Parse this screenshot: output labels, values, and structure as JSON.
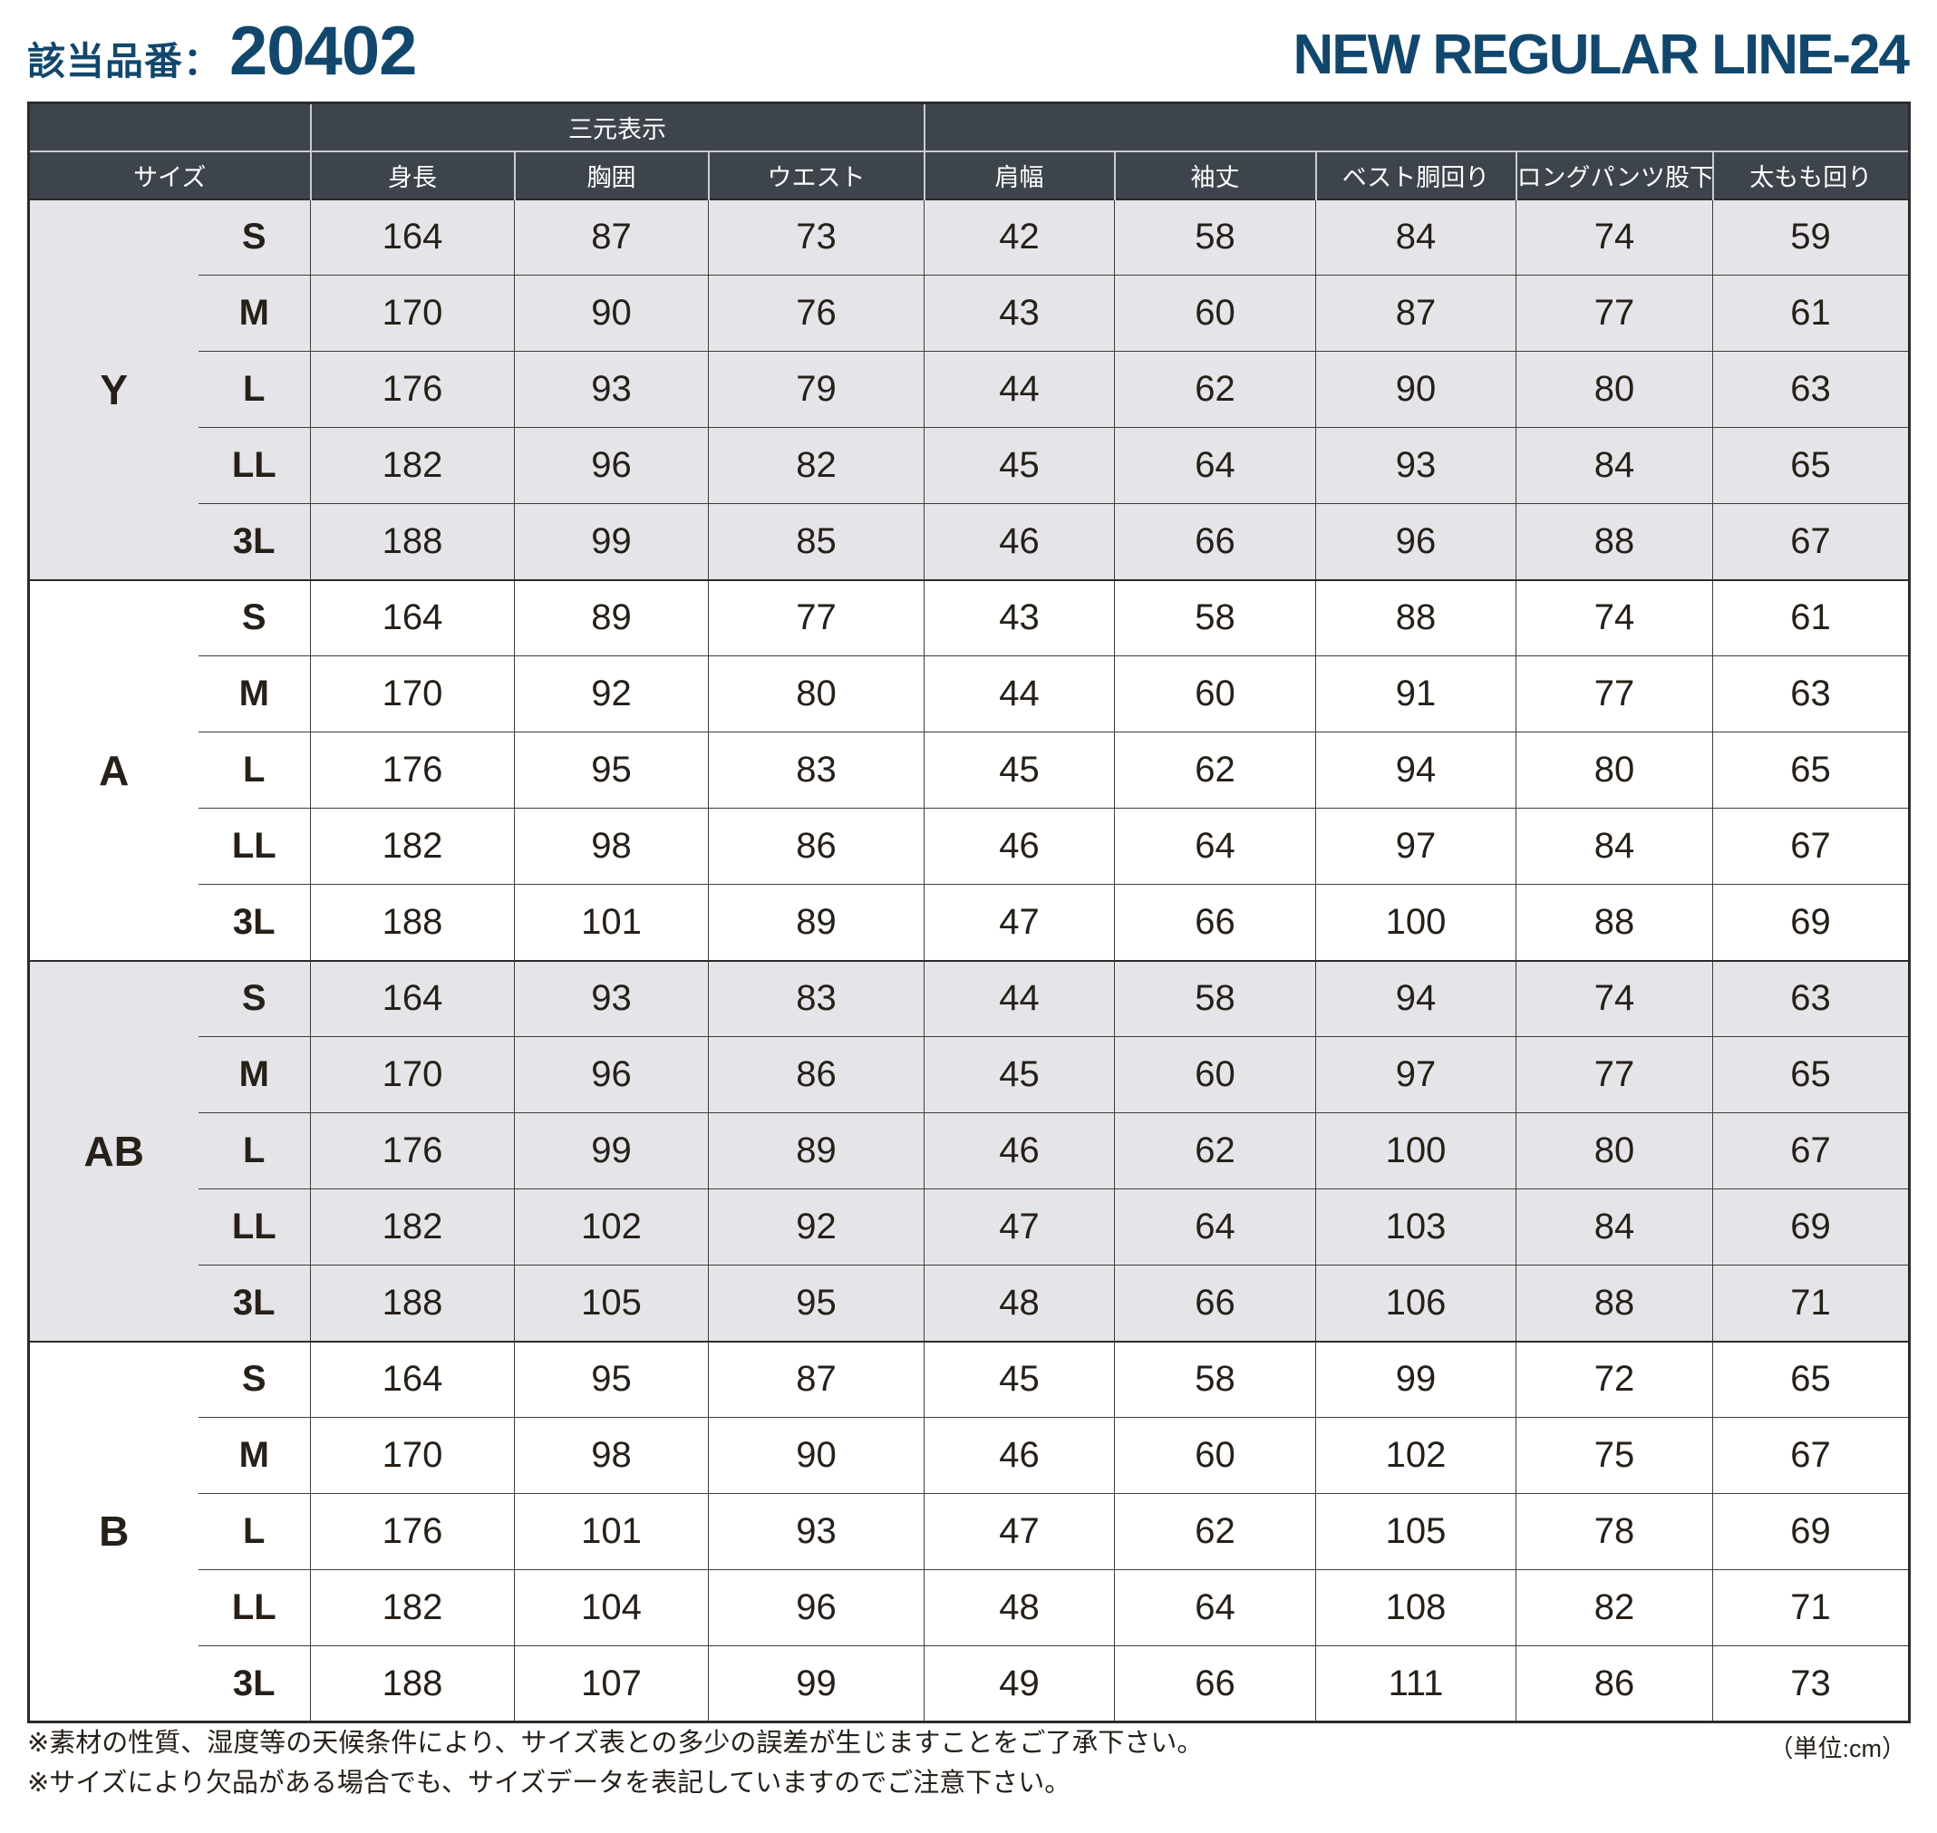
{
  "header": {
    "product_label": "該当品番：",
    "product_number": "20402",
    "line_name": "NEW REGULAR LINE-24"
  },
  "table": {
    "span_header": "三元表示",
    "columns": [
      "サイズ",
      "身長",
      "胸囲",
      "ウエスト",
      "肩幅",
      "袖丈",
      "ベスト胴回り",
      "ロングパンツ股下",
      "太もも回り"
    ],
    "groups": [
      {
        "name": "Y",
        "shaded": true,
        "rows": [
          {
            "size": "S",
            "values": [
              164,
              87,
              73,
              42,
              58,
              84,
              74,
              59
            ]
          },
          {
            "size": "M",
            "values": [
              170,
              90,
              76,
              43,
              60,
              87,
              77,
              61
            ]
          },
          {
            "size": "L",
            "values": [
              176,
              93,
              79,
              44,
              62,
              90,
              80,
              63
            ]
          },
          {
            "size": "LL",
            "values": [
              182,
              96,
              82,
              45,
              64,
              93,
              84,
              65
            ]
          },
          {
            "size": "3L",
            "values": [
              188,
              99,
              85,
              46,
              66,
              96,
              88,
              67
            ]
          }
        ]
      },
      {
        "name": "A",
        "shaded": false,
        "rows": [
          {
            "size": "S",
            "values": [
              164,
              89,
              77,
              43,
              58,
              88,
              74,
              61
            ]
          },
          {
            "size": "M",
            "values": [
              170,
              92,
              80,
              44,
              60,
              91,
              77,
              63
            ]
          },
          {
            "size": "L",
            "values": [
              176,
              95,
              83,
              45,
              62,
              94,
              80,
              65
            ]
          },
          {
            "size": "LL",
            "values": [
              182,
              98,
              86,
              46,
              64,
              97,
              84,
              67
            ]
          },
          {
            "size": "3L",
            "values": [
              188,
              101,
              89,
              47,
              66,
              100,
              88,
              69
            ]
          }
        ]
      },
      {
        "name": "AB",
        "shaded": true,
        "rows": [
          {
            "size": "S",
            "values": [
              164,
              93,
              83,
              44,
              58,
              94,
              74,
              63
            ]
          },
          {
            "size": "M",
            "values": [
              170,
              96,
              86,
              45,
              60,
              97,
              77,
              65
            ]
          },
          {
            "size": "L",
            "values": [
              176,
              99,
              89,
              46,
              62,
              100,
              80,
              67
            ]
          },
          {
            "size": "LL",
            "values": [
              182,
              102,
              92,
              47,
              64,
              103,
              84,
              69
            ]
          },
          {
            "size": "3L",
            "values": [
              188,
              105,
              95,
              48,
              66,
              106,
              88,
              71
            ]
          }
        ]
      },
      {
        "name": "B",
        "shaded": false,
        "rows": [
          {
            "size": "S",
            "values": [
              164,
              95,
              87,
              45,
              58,
              99,
              72,
              65
            ]
          },
          {
            "size": "M",
            "values": [
              170,
              98,
              90,
              46,
              60,
              102,
              75,
              67
            ]
          },
          {
            "size": "L",
            "values": [
              176,
              101,
              93,
              47,
              62,
              105,
              78,
              69
            ]
          },
          {
            "size": "LL",
            "values": [
              182,
              104,
              96,
              48,
              64,
              108,
              82,
              71
            ]
          },
          {
            "size": "3L",
            "values": [
              188,
              107,
              99,
              49,
              66,
              111,
              86,
              73
            ]
          }
        ]
      }
    ]
  },
  "footer": {
    "unit_note": "（単位:cm）",
    "notes": [
      "※素材の性質、湿度等の天候条件により、サイズ表との多少の誤差が生じますことをご了承下さい。",
      "※サイズにより欠品がある場合でも、サイズデータを表記していますのでご注意下さい。"
    ]
  },
  "colors": {
    "navy": "#12476d",
    "header_bg": "#3e444b",
    "shaded_row_bg": "#e5e5e9",
    "plain_row_bg": "#ffffff",
    "grid_line": "#423b38",
    "body_text": "#262019"
  }
}
